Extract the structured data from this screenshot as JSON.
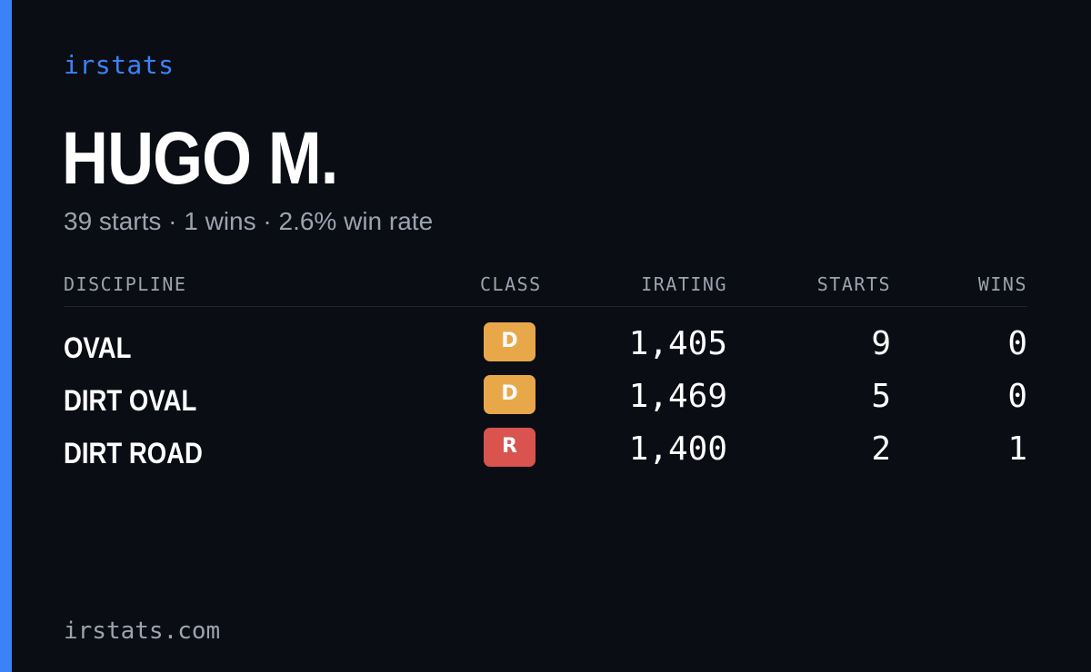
{
  "brand": {
    "name": "irstats"
  },
  "driver": {
    "name": "HUGO M.",
    "summary": "39 starts · 1 wins · 2.6% win rate"
  },
  "table": {
    "headers": {
      "discipline": "DISCIPLINE",
      "class": "CLASS",
      "irating": "IRATING",
      "starts": "STARTS",
      "wins": "WINS"
    },
    "rows": [
      {
        "discipline": "OVAL",
        "class": "D",
        "class_color": "#e8a84a",
        "irating": "1,405",
        "starts": "9",
        "wins": "0"
      },
      {
        "discipline": "DIRT OVAL",
        "class": "D",
        "class_color": "#e8a84a",
        "irating": "1,469",
        "starts": "5",
        "wins": "0"
      },
      {
        "discipline": "DIRT ROAD",
        "class": "R",
        "class_color": "#d9534f",
        "irating": "1,400",
        "starts": "2",
        "wins": "1"
      }
    ]
  },
  "footer": {
    "url": "irstats.com"
  },
  "colors": {
    "accent": "#3b82f6",
    "background": "#0a0d14",
    "muted_text": "#9ca3af"
  }
}
